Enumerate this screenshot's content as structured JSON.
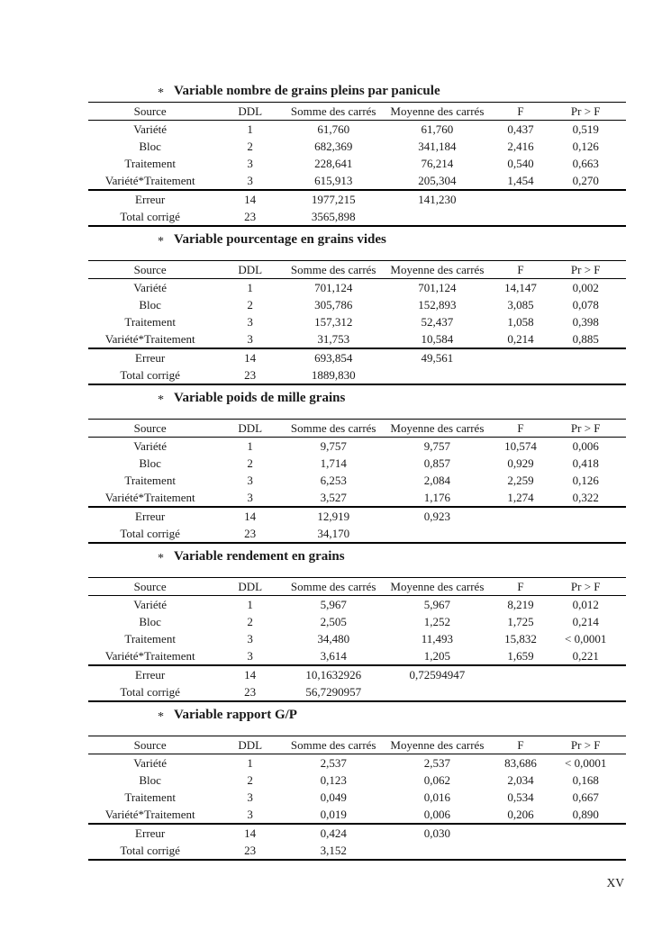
{
  "page": {
    "number": "XV"
  },
  "bullet_char": "*",
  "columns": [
    "Source",
    "DDL",
    "Somme des carrés",
    "Moyenne des carrés",
    "F",
    "Pr > F"
  ],
  "tables": [
    {
      "title": "Variable nombre de grains pleins par panicule",
      "body_rows": [
        [
          "Variété",
          "1",
          "61,760",
          "61,760",
          "0,437",
          "0,519"
        ],
        [
          "Bloc",
          "2",
          "682,369",
          "341,184",
          "2,416",
          "0,126"
        ],
        [
          "Traitement",
          "3",
          "228,641",
          "76,214",
          "0,540",
          "0,663"
        ],
        [
          "Variété*Traitement",
          "3",
          "615,913",
          "205,304",
          "1,454",
          "0,270"
        ]
      ],
      "footer_rows": [
        [
          "Erreur",
          "14",
          "1977,215",
          "141,230",
          "",
          ""
        ],
        [
          "Total corrigé",
          "23",
          "3565,898",
          "",
          "",
          ""
        ]
      ]
    },
    {
      "title": "Variable pourcentage en grains vides",
      "body_rows": [
        [
          "Variété",
          "1",
          "701,124",
          "701,124",
          "14,147",
          "0,002"
        ],
        [
          "Bloc",
          "2",
          "305,786",
          "152,893",
          "3,085",
          "0,078"
        ],
        [
          "Traitement",
          "3",
          "157,312",
          "52,437",
          "1,058",
          "0,398"
        ],
        [
          "Variété*Traitement",
          "3",
          "31,753",
          "10,584",
          "0,214",
          "0,885"
        ]
      ],
      "footer_rows": [
        [
          "Erreur",
          "14",
          "693,854",
          "49,561",
          "",
          ""
        ],
        [
          "Total corrigé",
          "23",
          "1889,830",
          "",
          "",
          ""
        ]
      ]
    },
    {
      "title": "Variable poids de mille grains",
      "body_rows": [
        [
          "Variété",
          "1",
          "9,757",
          "9,757",
          "10,574",
          "0,006"
        ],
        [
          "Bloc",
          "2",
          "1,714",
          "0,857",
          "0,929",
          "0,418"
        ],
        [
          "Traitement",
          "3",
          "6,253",
          "2,084",
          "2,259",
          "0,126"
        ],
        [
          "Variété*Traitement",
          "3",
          "3,527",
          "1,176",
          "1,274",
          "0,322"
        ]
      ],
      "footer_rows": [
        [
          "Erreur",
          "14",
          "12,919",
          "0,923",
          "",
          ""
        ],
        [
          "Total corrigé",
          "23",
          "34,170",
          "",
          "",
          ""
        ]
      ]
    },
    {
      "title": "Variable rendement en grains",
      "body_rows": [
        [
          "Variété",
          "1",
          "5,967",
          "5,967",
          "8,219",
          "0,012"
        ],
        [
          "Bloc",
          "2",
          "2,505",
          "1,252",
          "1,725",
          "0,214"
        ],
        [
          "Traitement",
          "3",
          "34,480",
          "11,493",
          "15,832",
          "< 0,0001"
        ],
        [
          "Variété*Traitement",
          "3",
          "3,614",
          "1,205",
          "1,659",
          "0,221"
        ]
      ],
      "footer_rows": [
        [
          "Erreur",
          "14",
          "10,1632926",
          "0,72594947",
          "",
          ""
        ],
        [
          "Total corrigé",
          "23",
          "56,7290957",
          "",
          "",
          ""
        ]
      ]
    },
    {
      "title": "Variable rapport G/P",
      "body_rows": [
        [
          "Variété",
          "1",
          "2,537",
          "2,537",
          "83,686",
          "< 0,0001"
        ],
        [
          "Bloc",
          "2",
          "0,123",
          "0,062",
          "2,034",
          "0,168"
        ],
        [
          "Traitement",
          "3",
          "0,049",
          "0,016",
          "0,534",
          "0,667"
        ],
        [
          "Variété*Traitement",
          "3",
          "0,019",
          "0,006",
          "0,206",
          "0,890"
        ]
      ],
      "footer_rows": [
        [
          "Erreur",
          "14",
          "0,424",
          "0,030",
          "",
          ""
        ],
        [
          "Total corrigé",
          "23",
          "3,152",
          "",
          "",
          ""
        ]
      ]
    }
  ]
}
